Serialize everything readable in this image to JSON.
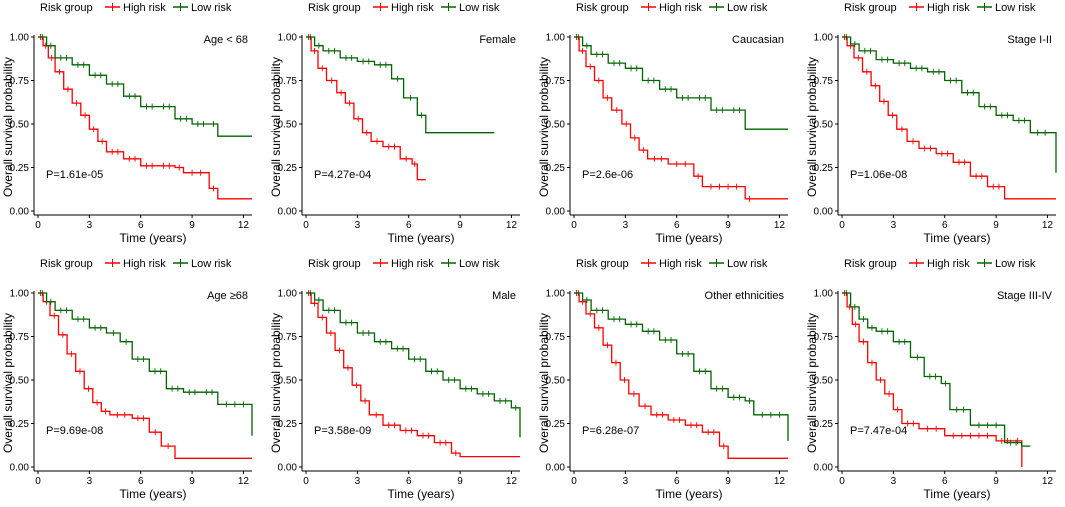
{
  "figure": {
    "legend_title": "Risk group",
    "legend_high": "High risk",
    "legend_low": "Low risk",
    "xlabel": "Time (years)",
    "ylabel": "Overall survival probability",
    "colors": {
      "high": "#ff0000",
      "low": "#006400"
    }
  },
  "chart_data": [
    {
      "type": "line",
      "panel": "Age < 68",
      "pvalue": "P=1.61e-05",
      "xlim": [
        0,
        12.5
      ],
      "ylim": [
        0,
        1
      ],
      "xticks": [
        0,
        3,
        6,
        9,
        12
      ],
      "yticks": [
        0,
        0.25,
        0.5,
        0.75,
        1.0
      ],
      "ytick_labels": [
        "0.00",
        "0.25",
        "0.50",
        "0.75",
        "1.00"
      ],
      "series": [
        {
          "name": "High risk",
          "x": [
            0,
            0.3,
            0.6,
            1.0,
            1.5,
            2.0,
            2.5,
            3.0,
            3.5,
            4.0,
            5.0,
            6.0,
            7.0,
            8.0,
            8.5,
            10.0,
            10.5,
            12.5
          ],
          "y": [
            1.0,
            0.95,
            0.88,
            0.8,
            0.7,
            0.62,
            0.55,
            0.47,
            0.4,
            0.34,
            0.3,
            0.26,
            0.26,
            0.25,
            0.22,
            0.13,
            0.07,
            0.07
          ]
        },
        {
          "name": "Low risk",
          "x": [
            0,
            0.5,
            1.0,
            2.0,
            3.0,
            4.0,
            5.0,
            6.0,
            7.0,
            8.0,
            9.0,
            10.0,
            10.5,
            12.5
          ],
          "y": [
            1.0,
            0.95,
            0.88,
            0.84,
            0.78,
            0.73,
            0.66,
            0.6,
            0.6,
            0.53,
            0.5,
            0.5,
            0.43,
            0.43
          ]
        }
      ]
    },
    {
      "type": "line",
      "panel": "Female",
      "pvalue": "P=4.27e-04",
      "xlim": [
        0,
        12.5
      ],
      "ylim": [
        0,
        1
      ],
      "xticks": [
        0,
        3,
        6,
        9,
        12
      ],
      "yticks": [
        0,
        0.25,
        0.5,
        0.75,
        1.0
      ],
      "ytick_labels": [
        "0.00",
        "0.25",
        "0.50",
        "0.75",
        "1.00"
      ],
      "series": [
        {
          "name": "High risk",
          "x": [
            0,
            0.3,
            0.7,
            1.2,
            1.8,
            2.3,
            2.8,
            3.3,
            3.8,
            4.5,
            5.5,
            6.2,
            6.5,
            7.0
          ],
          "y": [
            1.0,
            0.92,
            0.82,
            0.75,
            0.68,
            0.62,
            0.53,
            0.45,
            0.4,
            0.37,
            0.3,
            0.27,
            0.18,
            0.18
          ]
        },
        {
          "name": "Low risk",
          "x": [
            0,
            0.5,
            1.0,
            2.0,
            3.0,
            4.0,
            5.0,
            5.7,
            6.5,
            7.0,
            11.0
          ],
          "y": [
            1.0,
            0.95,
            0.92,
            0.88,
            0.86,
            0.84,
            0.76,
            0.65,
            0.55,
            0.45,
            0.45
          ]
        }
      ]
    },
    {
      "type": "line",
      "panel": "Caucasian",
      "pvalue": "P=2.6e-06",
      "xlim": [
        0,
        12.5
      ],
      "ylim": [
        0,
        1
      ],
      "xticks": [
        0,
        3,
        6,
        9,
        12
      ],
      "yticks": [
        0,
        0.25,
        0.5,
        0.75,
        1.0
      ],
      "ytick_labels": [
        "0.00",
        "0.25",
        "0.50",
        "0.75",
        "1.00"
      ],
      "series": [
        {
          "name": "High risk",
          "x": [
            0,
            0.3,
            0.7,
            1.2,
            1.7,
            2.2,
            2.8,
            3.3,
            3.8,
            4.3,
            5.5,
            7.0,
            7.5,
            10.0,
            10.5,
            12.5
          ],
          "y": [
            1.0,
            0.92,
            0.83,
            0.75,
            0.65,
            0.58,
            0.5,
            0.42,
            0.35,
            0.3,
            0.27,
            0.2,
            0.14,
            0.07,
            0.07,
            0.07
          ]
        },
        {
          "name": "Low risk",
          "x": [
            0,
            0.5,
            1.0,
            2.0,
            3.0,
            4.0,
            5.0,
            6.0,
            7.0,
            8.0,
            9.0,
            10.0,
            12.5
          ],
          "y": [
            1.0,
            0.95,
            0.9,
            0.85,
            0.82,
            0.75,
            0.7,
            0.65,
            0.65,
            0.58,
            0.58,
            0.47,
            0.47
          ]
        }
      ]
    },
    {
      "type": "line",
      "panel": "Stage I-II",
      "pvalue": "P=1.06e-08",
      "xlim": [
        0,
        12.5
      ],
      "ylim": [
        0,
        1
      ],
      "xticks": [
        0,
        3,
        6,
        9,
        12
      ],
      "yticks": [
        0,
        0.25,
        0.5,
        0.75,
        1.0
      ],
      "ytick_labels": [
        "0.00",
        "0.25",
        "0.50",
        "0.75",
        "1.00"
      ],
      "series": [
        {
          "name": "High risk",
          "x": [
            0,
            0.3,
            0.7,
            1.2,
            1.7,
            2.2,
            2.7,
            3.2,
            3.8,
            4.5,
            5.5,
            6.5,
            7.5,
            8.5,
            9.5,
            12.5
          ],
          "y": [
            1.0,
            0.95,
            0.88,
            0.8,
            0.72,
            0.63,
            0.55,
            0.47,
            0.4,
            0.36,
            0.33,
            0.28,
            0.2,
            0.14,
            0.07,
            0.07
          ]
        },
        {
          "name": "Low risk",
          "x": [
            0,
            0.5,
            1.0,
            2.0,
            3.0,
            4.0,
            5.0,
            6.0,
            7.0,
            8.0,
            9.0,
            10.0,
            11.0,
            12.3,
            12.5
          ],
          "y": [
            1.0,
            0.96,
            0.92,
            0.87,
            0.85,
            0.82,
            0.8,
            0.75,
            0.68,
            0.6,
            0.55,
            0.52,
            0.45,
            0.45,
            0.22
          ]
        }
      ]
    },
    {
      "type": "line",
      "panel": "Age ≥68",
      "pvalue": "P=9.69e-08",
      "xlim": [
        0,
        12.5
      ],
      "ylim": [
        0,
        1
      ],
      "xticks": [
        0,
        3,
        6,
        9,
        12
      ],
      "yticks": [
        0,
        0.25,
        0.5,
        0.75,
        1.0
      ],
      "ytick_labels": [
        "0.00",
        "0.25",
        "0.50",
        "0.75",
        "1.00"
      ],
      "series": [
        {
          "name": "High risk",
          "x": [
            0,
            0.3,
            0.7,
            1.2,
            1.7,
            2.2,
            2.7,
            3.2,
            3.7,
            4.2,
            5.5,
            6.5,
            7.2,
            8.0,
            12.5
          ],
          "y": [
            1.0,
            0.95,
            0.87,
            0.76,
            0.65,
            0.55,
            0.45,
            0.37,
            0.32,
            0.3,
            0.28,
            0.2,
            0.12,
            0.05,
            0.05
          ]
        },
        {
          "name": "Low risk",
          "x": [
            0,
            0.5,
            1.0,
            2.0,
            3.0,
            4.0,
            4.8,
            5.5,
            6.5,
            7.5,
            8.5,
            9.5,
            10.5,
            12.5,
            12.5
          ],
          "y": [
            1.0,
            0.95,
            0.9,
            0.85,
            0.8,
            0.77,
            0.72,
            0.62,
            0.55,
            0.45,
            0.43,
            0.43,
            0.36,
            0.36,
            0.18
          ]
        }
      ]
    },
    {
      "type": "line",
      "panel": "Male",
      "pvalue": "P=3.58e-09",
      "xlim": [
        0,
        12.5
      ],
      "ylim": [
        0,
        1
      ],
      "xticks": [
        0,
        3,
        6,
        9,
        12
      ],
      "yticks": [
        0,
        0.25,
        0.5,
        0.75,
        1.0
      ],
      "ytick_labels": [
        "0.00",
        "0.25",
        "0.50",
        "0.75",
        "1.00"
      ],
      "series": [
        {
          "name": "High risk",
          "x": [
            0,
            0.3,
            0.7,
            1.2,
            1.7,
            2.2,
            2.7,
            3.2,
            3.7,
            4.5,
            5.5,
            6.5,
            7.5,
            8.5,
            9.0,
            12.5
          ],
          "y": [
            1.0,
            0.94,
            0.86,
            0.77,
            0.67,
            0.57,
            0.47,
            0.38,
            0.3,
            0.24,
            0.21,
            0.18,
            0.14,
            0.08,
            0.06,
            0.06
          ]
        },
        {
          "name": "Low risk",
          "x": [
            0,
            0.5,
            1.0,
            2.0,
            3.0,
            4.0,
            5.0,
            6.0,
            7.0,
            8.0,
            9.0,
            10.0,
            11.0,
            12.0,
            12.5,
            12.5
          ],
          "y": [
            1.0,
            0.96,
            0.9,
            0.83,
            0.77,
            0.72,
            0.68,
            0.62,
            0.55,
            0.5,
            0.45,
            0.42,
            0.38,
            0.34,
            0.34,
            0.17
          ]
        }
      ]
    },
    {
      "type": "line",
      "panel": "Other ethnicities",
      "pvalue": "P=6.28e-07",
      "xlim": [
        0,
        12.5
      ],
      "ylim": [
        0,
        1
      ],
      "xticks": [
        0,
        3,
        6,
        9,
        12
      ],
      "yticks": [
        0,
        0.25,
        0.5,
        0.75,
        1.0
      ],
      "ytick_labels": [
        "0.00",
        "0.25",
        "0.50",
        "0.75",
        "1.00"
      ],
      "series": [
        {
          "name": "High risk",
          "x": [
            0,
            0.3,
            0.7,
            1.2,
            1.7,
            2.2,
            2.7,
            3.2,
            3.8,
            4.5,
            5.5,
            6.5,
            7.5,
            8.5,
            9.0,
            12.5
          ],
          "y": [
            1.0,
            0.95,
            0.88,
            0.8,
            0.7,
            0.6,
            0.5,
            0.42,
            0.35,
            0.3,
            0.27,
            0.24,
            0.2,
            0.12,
            0.05,
            0.05
          ]
        },
        {
          "name": "Low risk",
          "x": [
            0,
            0.5,
            1.0,
            2.0,
            3.0,
            4.0,
            5.0,
            6.0,
            7.0,
            8.0,
            9.0,
            10.0,
            10.5,
            12.5,
            12.5
          ],
          "y": [
            1.0,
            0.96,
            0.9,
            0.85,
            0.82,
            0.78,
            0.73,
            0.65,
            0.55,
            0.45,
            0.4,
            0.38,
            0.3,
            0.3,
            0.15
          ]
        }
      ]
    },
    {
      "type": "line",
      "panel": "Stage III-IV",
      "pvalue": "P=7.47e-04",
      "xlim": [
        0,
        12.5
      ],
      "ylim": [
        0,
        1
      ],
      "xticks": [
        0,
        3,
        6,
        9,
        12
      ],
      "yticks": [
        0,
        0.25,
        0.5,
        0.75,
        1.0
      ],
      "ytick_labels": [
        "0.00",
        "0.25",
        "0.50",
        "0.75",
        "1.00"
      ],
      "series": [
        {
          "name": "High risk",
          "x": [
            0,
            0.3,
            0.6,
            1.0,
            1.5,
            2.0,
            2.5,
            3.0,
            3.5,
            4.5,
            6.0,
            9.0,
            10.0,
            10.5,
            10.5
          ],
          "y": [
            1.0,
            0.92,
            0.82,
            0.72,
            0.6,
            0.5,
            0.42,
            0.33,
            0.25,
            0.22,
            0.18,
            0.15,
            0.15,
            0.15,
            0.0
          ]
        },
        {
          "name": "Low risk",
          "x": [
            0,
            0.5,
            1.0,
            1.5,
            2.0,
            3.0,
            4.0,
            4.8,
            5.8,
            6.3,
            7.5,
            9.5,
            10.5,
            11.0
          ],
          "y": [
            1.0,
            0.92,
            0.85,
            0.8,
            0.78,
            0.72,
            0.63,
            0.52,
            0.48,
            0.33,
            0.24,
            0.14,
            0.12,
            0.12
          ]
        }
      ]
    }
  ]
}
